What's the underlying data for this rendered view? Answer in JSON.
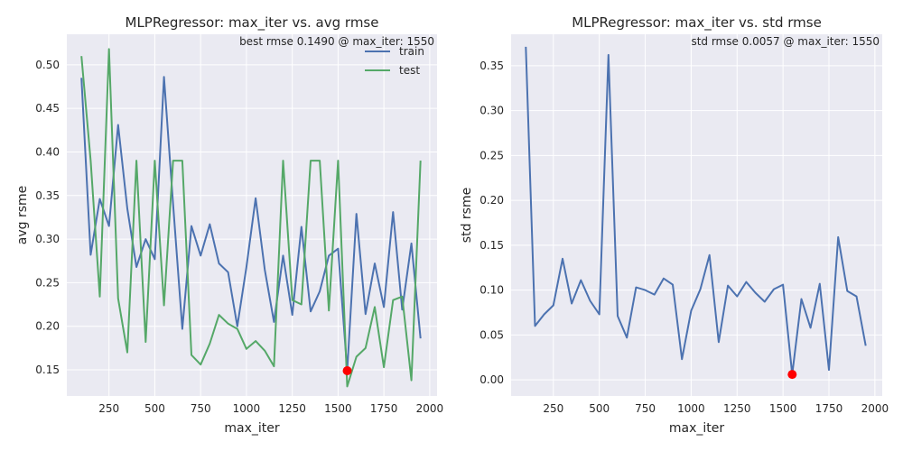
{
  "chart_data": [
    {
      "type": "line",
      "title": "MLPRegressor: max_iter vs. avg rmse",
      "xlabel": "max_iter",
      "ylabel": "avg rsme",
      "annotation": "best rmse 0.1490 @ max_iter: 1550",
      "xlim": [
        20,
        2040
      ],
      "ylim": [
        0.12,
        0.535
      ],
      "xticks": [
        250,
        500,
        750,
        1000,
        1250,
        1500,
        1750,
        2000
      ],
      "yticks": [
        0.15,
        0.2,
        0.25,
        0.3,
        0.35,
        0.4,
        0.45,
        0.5
      ],
      "ytick_labels": [
        "0.15",
        "0.20",
        "0.25",
        "0.30",
        "0.35",
        "0.40",
        "0.45",
        "0.50"
      ],
      "grid": true,
      "legend": "top-right",
      "x": [
        100,
        150,
        200,
        250,
        300,
        350,
        400,
        450,
        500,
        550,
        600,
        650,
        700,
        750,
        800,
        850,
        900,
        950,
        1000,
        1050,
        1100,
        1150,
        1200,
        1250,
        1300,
        1350,
        1400,
        1450,
        1500,
        1550,
        1600,
        1650,
        1700,
        1750,
        1800,
        1850,
        1900,
        1950
      ],
      "series": [
        {
          "name": "train",
          "color": "#4c72b0",
          "values": [
            0.485,
            0.282,
            0.346,
            0.315,
            0.431,
            0.335,
            0.268,
            0.3,
            0.277,
            0.486,
            0.34,
            0.197,
            0.315,
            0.281,
            0.317,
            0.272,
            0.262,
            0.2,
            0.268,
            0.347,
            0.265,
            0.205,
            0.281,
            0.213,
            0.314,
            0.217,
            0.24,
            0.281,
            0.289,
            0.149,
            0.329,
            0.214,
            0.272,
            0.222,
            0.331,
            0.219,
            0.295,
            0.186
          ]
        },
        {
          "name": "test",
          "color": "#55a868",
          "values": [
            0.51,
            0.39,
            0.234,
            0.518,
            0.232,
            0.17,
            0.39,
            0.182,
            0.39,
            0.224,
            0.39,
            0.39,
            0.167,
            0.156,
            0.18,
            0.213,
            0.203,
            0.197,
            0.174,
            0.183,
            0.172,
            0.154,
            0.39,
            0.23,
            0.225,
            0.39,
            0.39,
            0.218,
            0.39,
            0.131,
            0.165,
            0.175,
            0.222,
            0.153,
            0.23,
            0.234,
            0.138,
            0.39
          ]
        }
      ],
      "best_point": {
        "x": 1550,
        "y": 0.149,
        "color": "#ff0000"
      }
    },
    {
      "type": "line",
      "title": "MLPRegressor: max_iter vs. std rmse",
      "xlabel": "max_iter",
      "ylabel": "std rsme",
      "annotation": "std rmse 0.0057 @ max_iter: 1550",
      "xlim": [
        20,
        2040
      ],
      "ylim": [
        -0.018,
        0.385
      ],
      "xticks": [
        250,
        500,
        750,
        1000,
        1250,
        1500,
        1750,
        2000
      ],
      "yticks": [
        0.0,
        0.05,
        0.1,
        0.15,
        0.2,
        0.25,
        0.3,
        0.35
      ],
      "ytick_labels": [
        "0.00",
        "0.05",
        "0.10",
        "0.15",
        "0.20",
        "0.25",
        "0.30",
        "0.35"
      ],
      "grid": true,
      "x": [
        100,
        150,
        200,
        250,
        300,
        350,
        400,
        450,
        500,
        550,
        600,
        650,
        700,
        750,
        800,
        850,
        900,
        950,
        1000,
        1050,
        1100,
        1150,
        1200,
        1250,
        1300,
        1350,
        1400,
        1450,
        1500,
        1550,
        1600,
        1650,
        1700,
        1750,
        1800,
        1850,
        1900,
        1950
      ],
      "series": [
        {
          "color": "#4c72b0",
          "values": [
            0.371,
            0.06,
            0.073,
            0.083,
            0.135,
            0.085,
            0.111,
            0.088,
            0.073,
            0.362,
            0.071,
            0.047,
            0.103,
            0.1,
            0.095,
            0.113,
            0.106,
            0.023,
            0.077,
            0.101,
            0.139,
            0.042,
            0.105,
            0.093,
            0.109,
            0.097,
            0.087,
            0.101,
            0.106,
            0.006,
            0.09,
            0.058,
            0.107,
            0.011,
            0.159,
            0.099,
            0.093,
            0.038
          ]
        }
      ],
      "best_point": {
        "x": 1550,
        "y": 0.006,
        "color": "#ff0000"
      }
    }
  ]
}
